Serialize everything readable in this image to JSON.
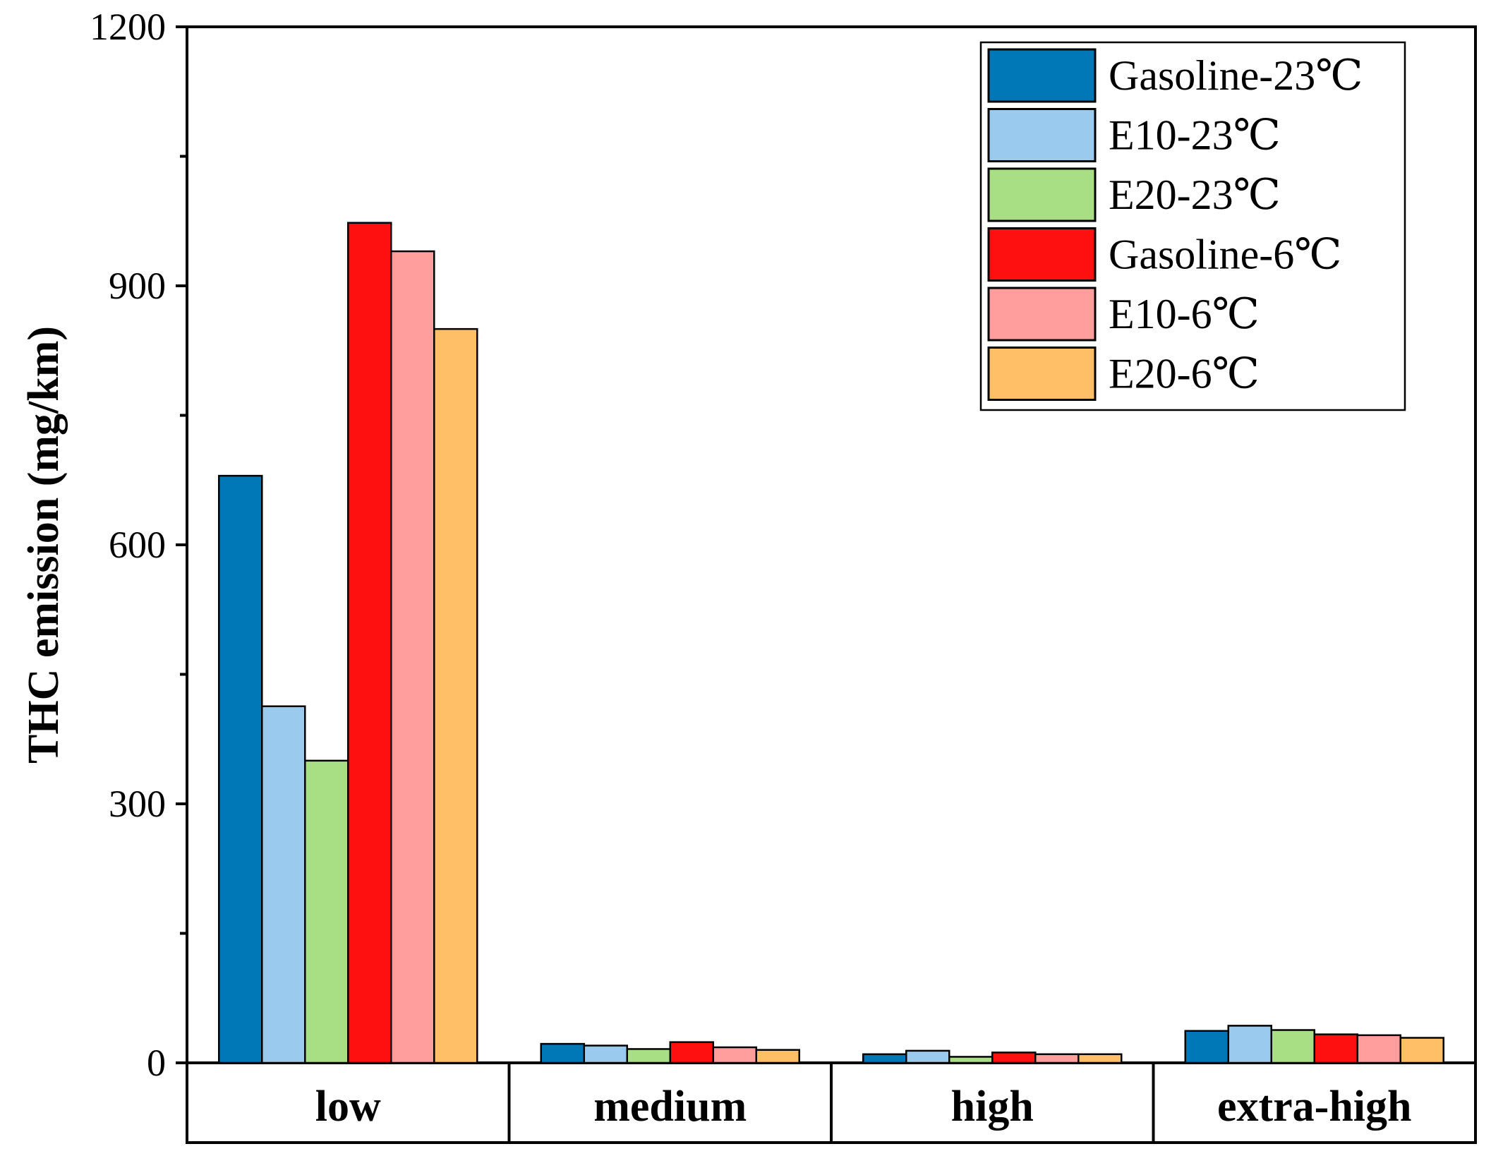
{
  "chart_data": {
    "type": "bar",
    "title": "",
    "xlabel": "",
    "ylabel": "THC emission (mg/km)",
    "ylim": [
      0,
      1200
    ],
    "yticks": [
      0,
      300,
      600,
      900,
      1200
    ],
    "yticks_minor": [
      150,
      450,
      750,
      1050
    ],
    "categories": [
      "low",
      "medium",
      "high",
      "extra-high"
    ],
    "legend_position": "top-right",
    "series": [
      {
        "name": "Gasoline-23℃",
        "color": "#0077B6",
        "values": [
          680,
          22,
          10,
          37
        ]
      },
      {
        "name": "E10-23℃",
        "color": "#9ACBEE",
        "values": [
          413,
          20,
          14,
          43
        ]
      },
      {
        "name": "E20-23℃",
        "color": "#A8DF84",
        "values": [
          350,
          16,
          7,
          38
        ]
      },
      {
        "name": "Gasoline-6℃",
        "color": "#FF1010",
        "values": [
          973,
          24,
          12,
          33
        ]
      },
      {
        "name": "E10-6℃",
        "color": "#FF9E9C",
        "values": [
          940,
          18,
          10,
          32
        ]
      },
      {
        "name": "E20-6℃",
        "color": "#FFBF66",
        "values": [
          850,
          15,
          10,
          29
        ]
      }
    ]
  }
}
